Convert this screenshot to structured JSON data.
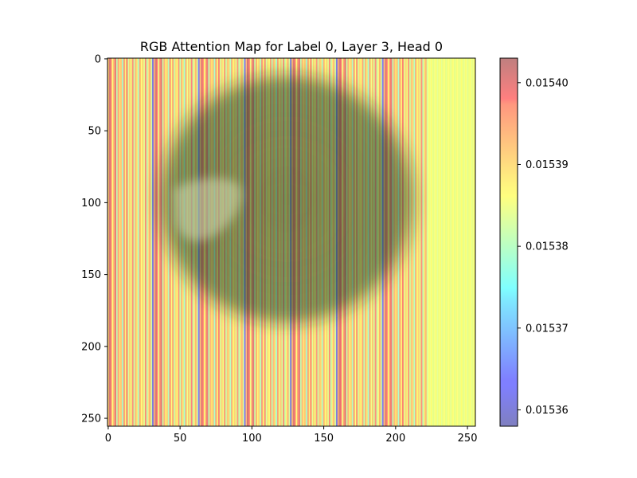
{
  "chart_data": {
    "type": "heatmap",
    "title": "RGB Attention Map for Label 0, Layer 3, Head 0",
    "xlabel": "",
    "ylabel": "",
    "xlim": [
      0,
      255
    ],
    "ylim": [
      255,
      0
    ],
    "y_inverted": true,
    "grid": false,
    "x_ticks": [
      {
        "value": 0,
        "label": "0"
      },
      {
        "value": 50,
        "label": "50"
      },
      {
        "value": 100,
        "label": "100"
      },
      {
        "value": 150,
        "label": "150"
      },
      {
        "value": 200,
        "label": "200"
      },
      {
        "value": 250,
        "label": "250"
      }
    ],
    "y_ticks": [
      {
        "value": 0,
        "label": "0"
      },
      {
        "value": 50,
        "label": "50"
      },
      {
        "value": 100,
        "label": "100"
      },
      {
        "value": 150,
        "label": "150"
      },
      {
        "value": 200,
        "label": "200"
      },
      {
        "value": 250,
        "label": "250"
      }
    ],
    "colormap": "jet",
    "overlay_alpha": 0.5,
    "colorbar": {
      "placement": "right",
      "min": 0.015358,
      "max": 0.015403,
      "ticks": [
        {
          "value": 0.01536,
          "label": "0.01536"
        },
        {
          "value": 0.01537,
          "label": "0.01537"
        },
        {
          "value": 0.01538,
          "label": "0.01538"
        },
        {
          "value": 0.01539,
          "label": "0.01539"
        },
        {
          "value": 0.0154,
          "label": "0.01540"
        }
      ]
    },
    "column_values": [
      0.01539,
      0.015401,
      0.015396,
      0.015386,
      0.015393,
      0.015399,
      0.015381,
      0.015394,
      0.015388,
      0.015391,
      0.015379,
      0.015395,
      0.015387,
      0.015398,
      0.015383,
      0.01539,
      0.015385,
      0.015396,
      0.015382,
      0.015392,
      0.015388,
      0.01538,
      0.015394,
      0.015386,
      0.01539,
      0.015384,
      0.015396,
      0.015381,
      0.015389,
      0.015393,
      0.015383,
      0.015362,
      0.015392,
      0.015401,
      0.015397,
      0.015385,
      0.015395,
      0.0154,
      0.015382,
      0.015393,
      0.015387,
      0.01539,
      0.01538,
      0.015396,
      0.015386,
      0.015394,
      0.015382,
      0.015389,
      0.015386,
      0.015395,
      0.015381,
      0.015392,
      0.015388,
      0.015379,
      0.015393,
      0.015385,
      0.015391,
      0.015384,
      0.015397,
      0.015382,
      0.015388,
      0.015392,
      0.015383,
      0.015363,
      0.015391,
      0.0154,
      0.015396,
      0.015386,
      0.015394,
      0.015399,
      0.015381,
      0.015392,
      0.015388,
      0.015391,
      0.015379,
      0.015394,
      0.015387,
      0.015397,
      0.015383,
      0.01539,
      0.015385,
      0.015395,
      0.015382,
      0.015391,
      0.015389,
      0.01538,
      0.015393,
      0.015386,
      0.01539,
      0.015384,
      0.015395,
      0.015381,
      0.015388,
      0.015392,
      0.015384,
      0.015364,
      0.015392,
      0.015401,
      0.015397,
      0.015385,
      0.015394,
      0.0154,
      0.015382,
      0.015393,
      0.015387,
      0.01539,
      0.01538,
      0.015395,
      0.015386,
      0.015396,
      0.015383,
      0.015389,
      0.015386,
      0.015394,
      0.015381,
      0.015392,
      0.015388,
      0.015379,
      0.015394,
      0.015385,
      0.015391,
      0.015383,
      0.015396,
      0.015382,
      0.015387,
      0.015393,
      0.015383,
      0.015361,
      0.015391,
      0.0154,
      0.015396,
      0.015386,
      0.015395,
      0.015399,
      0.015381,
      0.015392,
      0.015388,
      0.015391,
      0.015379,
      0.015394,
      0.015387,
      0.015397,
      0.015384,
      0.01539,
      0.015385,
      0.015395,
      0.015382,
      0.015391,
      0.015389,
      0.01538,
      0.015393,
      0.015386,
      0.01539,
      0.015384,
      0.015396,
      0.015381,
      0.015388,
      0.015392,
      0.015383,
      0.015362,
      0.015392,
      0.015401,
      0.015397,
      0.015385,
      0.015394,
      0.0154,
      0.015382,
      0.015393,
      0.015387,
      0.01539,
      0.01538,
      0.015395,
      0.015386,
      0.015396,
      0.015383,
      0.015389,
      0.015386,
      0.015394,
      0.015381,
      0.015392,
      0.015388,
      0.015379,
      0.015394,
      0.015385,
      0.015391,
      0.015383,
      0.015396,
      0.015382,
      0.015387,
      0.015393,
      0.015383,
      0.015363,
      0.015391,
      0.0154,
      0.015396,
      0.015386,
      0.015395,
      0.015399,
      0.015381,
      0.015392,
      0.015388,
      0.015391,
      0.015379,
      0.015394,
      0.015387,
      0.015397,
      0.015384,
      0.01539,
      0.015385,
      0.015395,
      0.015382,
      0.015391,
      0.015389,
      0.01538,
      0.015393,
      0.015386,
      0.01539,
      0.015384,
      0.015396,
      0.015381,
      0.015388,
      0.015392,
      0.015383,
      0.015386,
      0.015385,
      0.015386,
      0.015384,
      0.015385,
      0.015386,
      0.015384,
      0.015385,
      0.015386,
      0.015384,
      0.015385,
      0.015386,
      0.015384,
      0.015385,
      0.015386,
      0.015384,
      0.015385,
      0.015386,
      0.015384,
      0.015385,
      0.015386,
      0.015384,
      0.015385,
      0.015386,
      0.015384,
      0.015385,
      0.015386,
      0.015384,
      0.015385,
      0.015386,
      0.015384,
      0.015385,
      0.015386
    ]
  }
}
